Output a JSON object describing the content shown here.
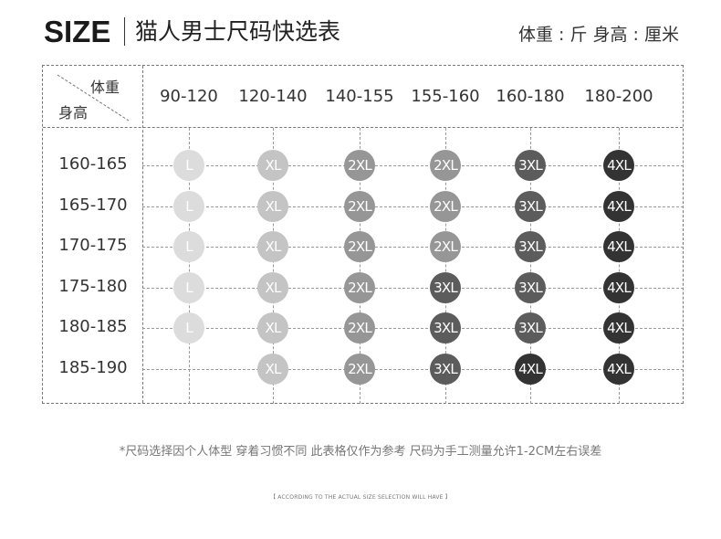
{
  "header": {
    "size_word": "SIZE",
    "title": "猫人男士尺码快选表",
    "unit_note": "体重 : 斤  身高 : 厘米"
  },
  "table": {
    "corner_weight": "体重",
    "corner_height": "身高",
    "columns": [
      "90-120",
      "120-140",
      "140-155",
      "155-160",
      "160-180",
      "180-200"
    ],
    "rows": [
      {
        "label": "160-165",
        "sizes": [
          "L",
          "XL",
          "2XL",
          "2XL",
          "3XL",
          "4XL"
        ]
      },
      {
        "label": "165-170",
        "sizes": [
          "L",
          "XL",
          "2XL",
          "2XL",
          "3XL",
          "4XL"
        ]
      },
      {
        "label": "170-175",
        "sizes": [
          "L",
          "XL",
          "2XL",
          "2XL",
          "3XL",
          "4XL"
        ]
      },
      {
        "label": "175-180",
        "sizes": [
          "L",
          "XL",
          "2XL",
          "3XL",
          "3XL",
          "4XL"
        ]
      },
      {
        "label": "180-185",
        "sizes": [
          "L",
          "XL",
          "2XL",
          "3XL",
          "3XL",
          "4XL"
        ]
      },
      {
        "label": "185-190",
        "sizes": [
          "",
          "XL",
          "2XL",
          "3XL",
          "4XL",
          "4XL"
        ]
      }
    ],
    "size_colors": {
      "L": "#dcdcdc",
      "XL": "#c4c4c4",
      "2XL": "#969696",
      "3XL": "#5c5c5c",
      "4XL": "#333333"
    }
  },
  "footer": {
    "note": "*尺码选择因个人体型 穿着习惯不同 此表格仅作为参考 尺码为手工测量允许1-2CM左右误差",
    "sub": "【 ACCORDING TO THE ACTUAL SIZE SELECTION WILL HAVE 】"
  }
}
